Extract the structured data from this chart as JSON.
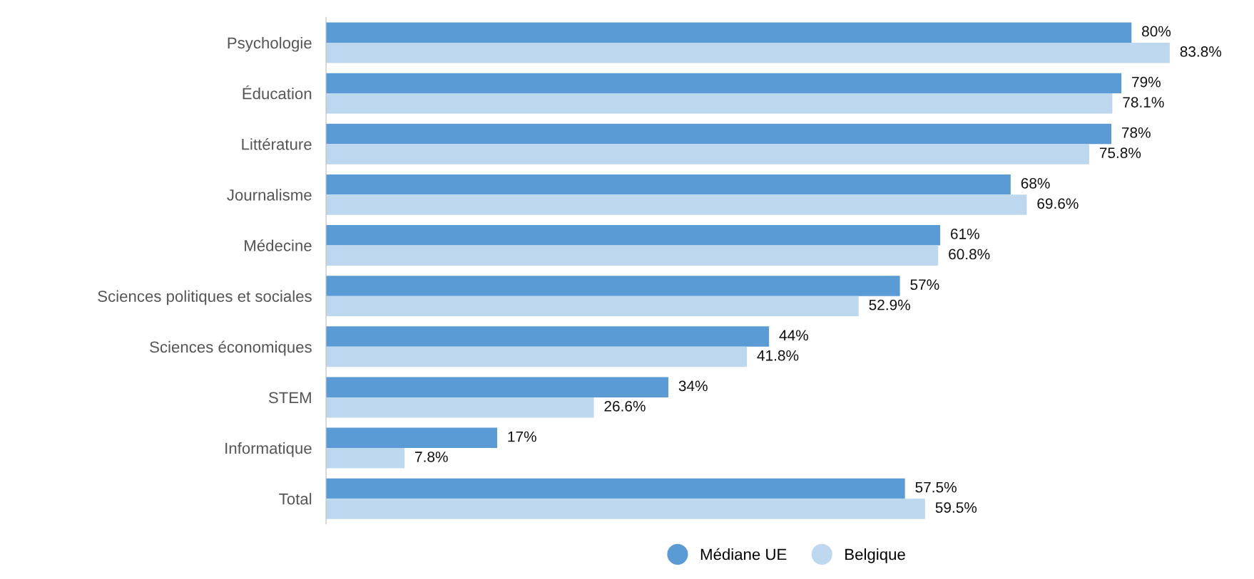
{
  "chart_data": {
    "type": "bar",
    "orientation": "horizontal",
    "categories": [
      "Psychologie",
      "Éducation",
      "Littérature",
      "Journalisme",
      "Médecine",
      "Sciences politiques et sociales",
      "Sciences économiques",
      "STEM",
      "Informatique",
      "Total"
    ],
    "series": [
      {
        "name": "Médiane UE",
        "color": "#5b9bd5",
        "values": [
          80,
          79,
          78,
          68,
          61,
          57,
          44,
          34,
          17,
          57.5
        ],
        "value_labels": [
          "80%",
          "79%",
          "78%",
          "68%",
          "61%",
          "57%",
          "44%",
          "34%",
          "17%",
          "57.5%"
        ]
      },
      {
        "name": "Belgique",
        "color": "#bdd7ee",
        "values": [
          83.8,
          78.1,
          75.8,
          69.6,
          60.8,
          52.9,
          41.8,
          26.6,
          7.8,
          59.5
        ],
        "value_labels": [
          "83.8%",
          "78.1%",
          "75.8%",
          "69.6%",
          "60.8%",
          "52.9%",
          "41.8%",
          "26.6%",
          "7.8%",
          "59.5%"
        ]
      }
    ],
    "legend": "bottom",
    "grid": false,
    "tick_labels": "y"
  }
}
